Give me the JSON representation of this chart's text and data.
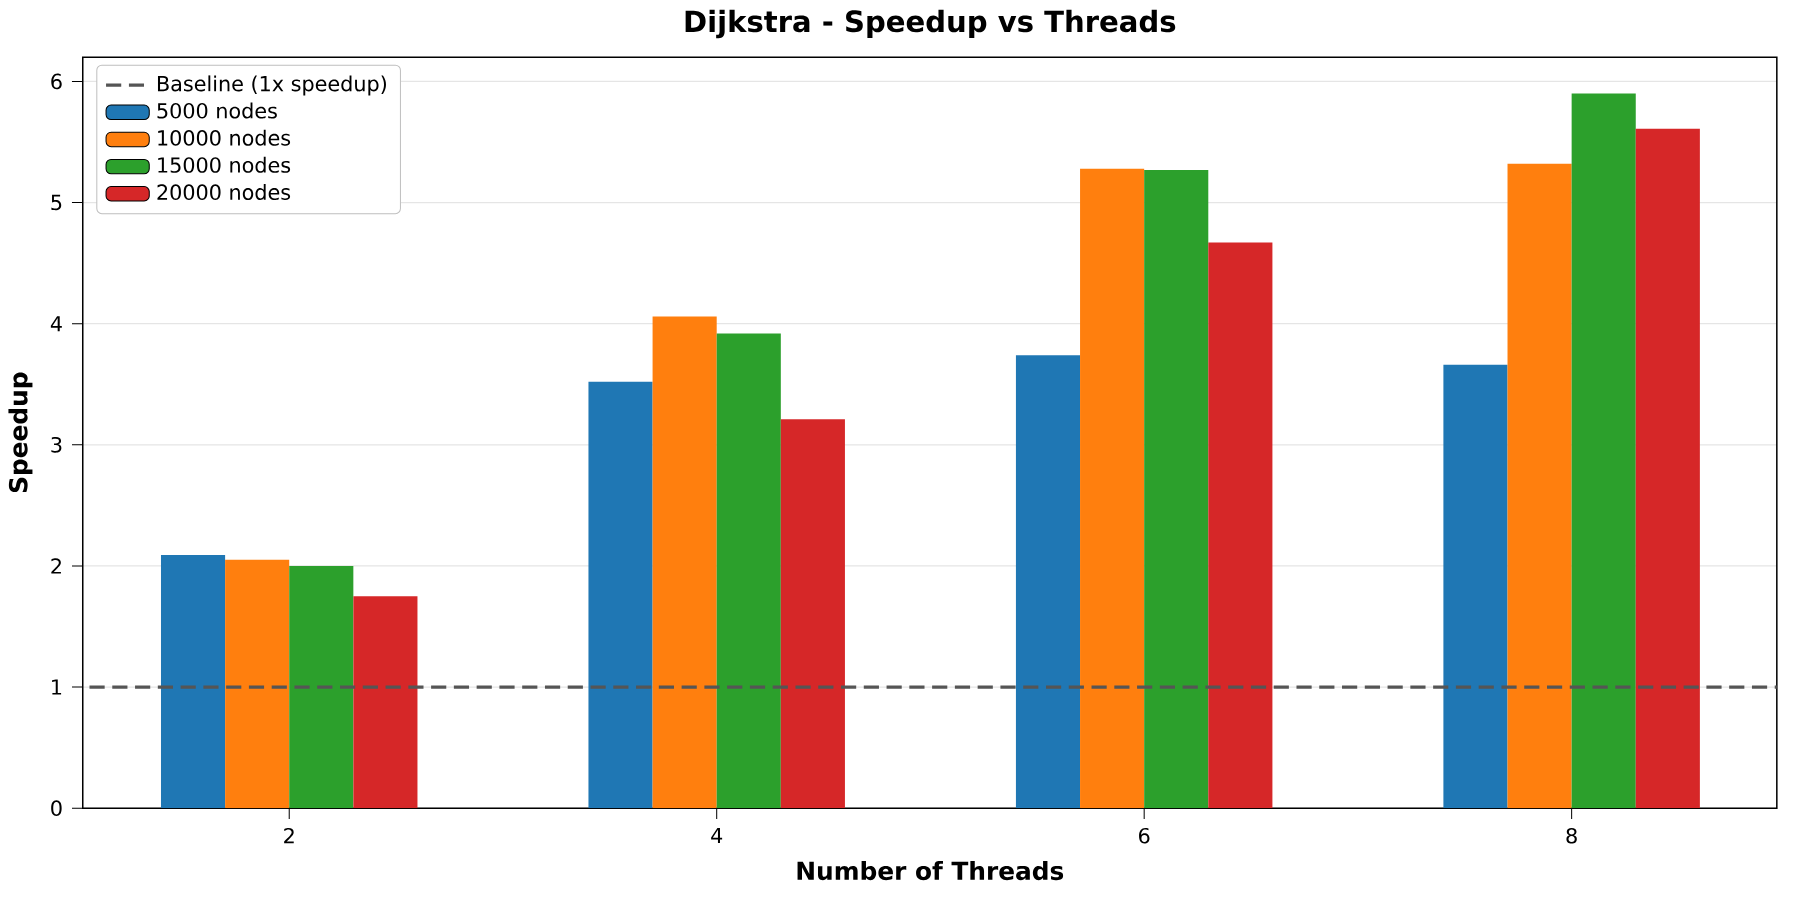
{
  "chart_data": {
    "type": "bar",
    "title": "Dijkstra - Speedup vs Threads",
    "xlabel": "Number of Threads",
    "ylabel": "Speedup",
    "categories": [
      "2",
      "4",
      "6",
      "8"
    ],
    "series": [
      {
        "name": "5000 nodes",
        "color": "#1f77b4",
        "values": [
          2.09,
          3.52,
          3.74,
          3.66
        ]
      },
      {
        "name": "10000 nodes",
        "color": "#ff7f0e",
        "values": [
          2.05,
          4.06,
          5.28,
          5.32
        ]
      },
      {
        "name": "15000 nodes",
        "color": "#2ca02c",
        "values": [
          2.0,
          3.92,
          5.27,
          5.9
        ]
      },
      {
        "name": "20000 nodes",
        "color": "#d62728",
        "values": [
          1.75,
          3.21,
          4.67,
          5.61
        ]
      }
    ],
    "ylim": [
      0,
      6.2
    ],
    "yticks": [
      0,
      1,
      2,
      3,
      4,
      5,
      6
    ],
    "grid": "y",
    "legend": "top left",
    "ref_lines": [
      {
        "axis": "y",
        "value": 1,
        "label": "Baseline (1x speedup)",
        "color": "#555555",
        "line_style": "dashed"
      }
    ]
  }
}
